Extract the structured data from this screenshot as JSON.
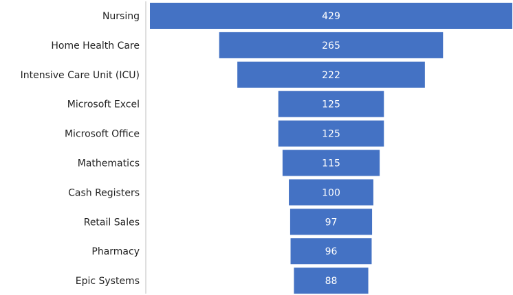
{
  "chart_data": {
    "type": "funnel",
    "color": "#4472c4",
    "categories": [
      "Nursing",
      "Home Health Care",
      "Intensive Care Unit (ICU)",
      "Microsoft Excel",
      "Microsoft Office",
      "Mathematics",
      "Cash Registers",
      "Retail Sales",
      "Pharmacy",
      "Epic Systems"
    ],
    "values": [
      429,
      265,
      222,
      125,
      125,
      115,
      100,
      97,
      96,
      88
    ]
  }
}
